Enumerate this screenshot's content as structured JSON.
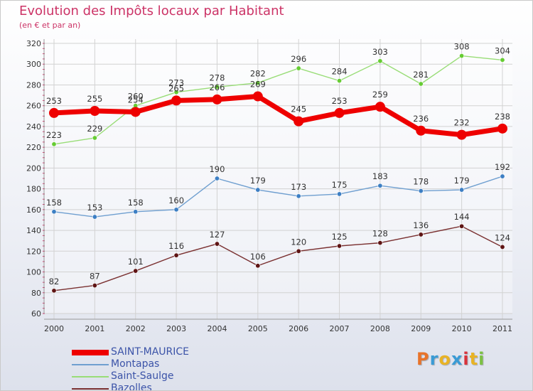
{
  "title": "Evolution des Impôts locaux par Habitant",
  "subtitle": "(en € et par an)",
  "logo": {
    "text": "Proxiti",
    "colors": [
      "#e8732a",
      "#3a9bd5",
      "#e8b325",
      "#3a9bd5",
      "#d8323b",
      "#e8b325",
      "#7cc144"
    ]
  },
  "chart_data": {
    "type": "line",
    "x": [
      "2000",
      "2001",
      "2002",
      "2003",
      "2004",
      "2005",
      "2006",
      "2007",
      "2008",
      "2009",
      "2010",
      "2011"
    ],
    "ylim": [
      60,
      320
    ],
    "yticks": [
      60,
      80,
      100,
      120,
      140,
      160,
      180,
      200,
      220,
      240,
      260,
      280,
      300,
      320
    ],
    "grid": true,
    "legend_position": "bottom-left",
    "series": [
      {
        "name": "SAINT-MAURICE",
        "color": "#ee0000",
        "marker": "#ee0000",
        "values": [
          253,
          255,
          254,
          265,
          266,
          269,
          245,
          253,
          259,
          236,
          232,
          238
        ]
      },
      {
        "name": "Montapas",
        "color": "#6f9fd0",
        "marker": "#3d7fc4",
        "values": [
          158,
          153,
          158,
          160,
          190,
          179,
          173,
          175,
          183,
          178,
          179,
          192
        ]
      },
      {
        "name": "Saint-Saulge",
        "color": "#99dd77",
        "marker": "#66cc33",
        "values": [
          223,
          229,
          260,
          273,
          278,
          282,
          296,
          284,
          303,
          281,
          308,
          304
        ]
      },
      {
        "name": "Bazolles",
        "color": "#7a3030",
        "marker": "#5e1414",
        "values": [
          82,
          87,
          101,
          116,
          127,
          106,
          120,
          125,
          128,
          136,
          144,
          124
        ]
      }
    ]
  }
}
